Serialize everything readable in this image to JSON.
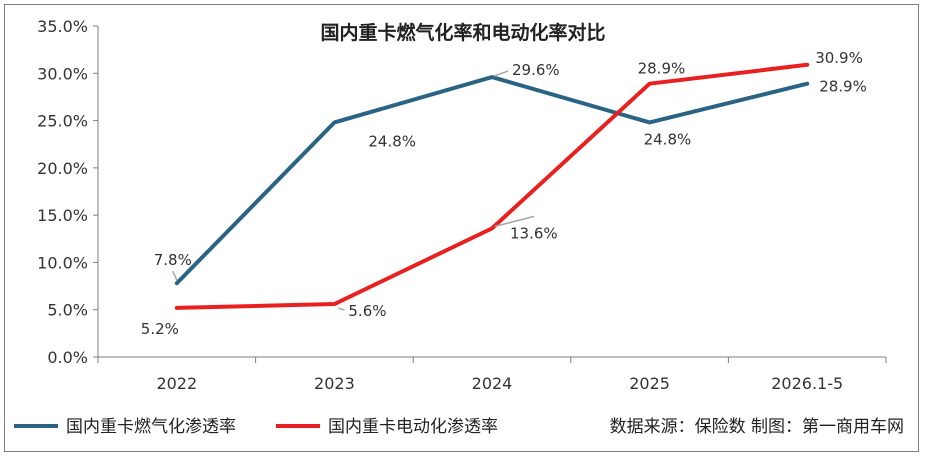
{
  "chart_data": {
    "type": "line",
    "title": "国内重卡燃气化率和电动化率对比",
    "categories": [
      "2022",
      "2023",
      "2024",
      "2025",
      "2026.1-5"
    ],
    "series": [
      {
        "name": "国内重卡燃气化渗透率",
        "values": [
          7.8,
          24.8,
          29.6,
          24.8,
          28.9
        ],
        "labels": [
          "7.8%",
          "24.8%",
          "29.6%",
          "24.8%",
          "28.9%"
        ],
        "color": "#2a6384"
      },
      {
        "name": "国内重卡电动化渗透率",
        "values": [
          5.2,
          5.6,
          13.6,
          28.9,
          30.9
        ],
        "labels": [
          "5.2%",
          "5.6%",
          "13.6%",
          "28.9%",
          "30.9%"
        ],
        "color": "#e8201f"
      }
    ],
    "ylim": [
      0,
      35
    ],
    "yticks": [
      "0.0%",
      "5.0%",
      "10.0%",
      "15.0%",
      "20.0%",
      "25.0%",
      "30.0%",
      "35.0%"
    ],
    "ytick_values": [
      0,
      5,
      10,
      15,
      20,
      25,
      30,
      35
    ],
    "grid": false,
    "legend": "bottom-left"
  },
  "source_note": "数据来源：保险数 制图：第一商用车网"
}
